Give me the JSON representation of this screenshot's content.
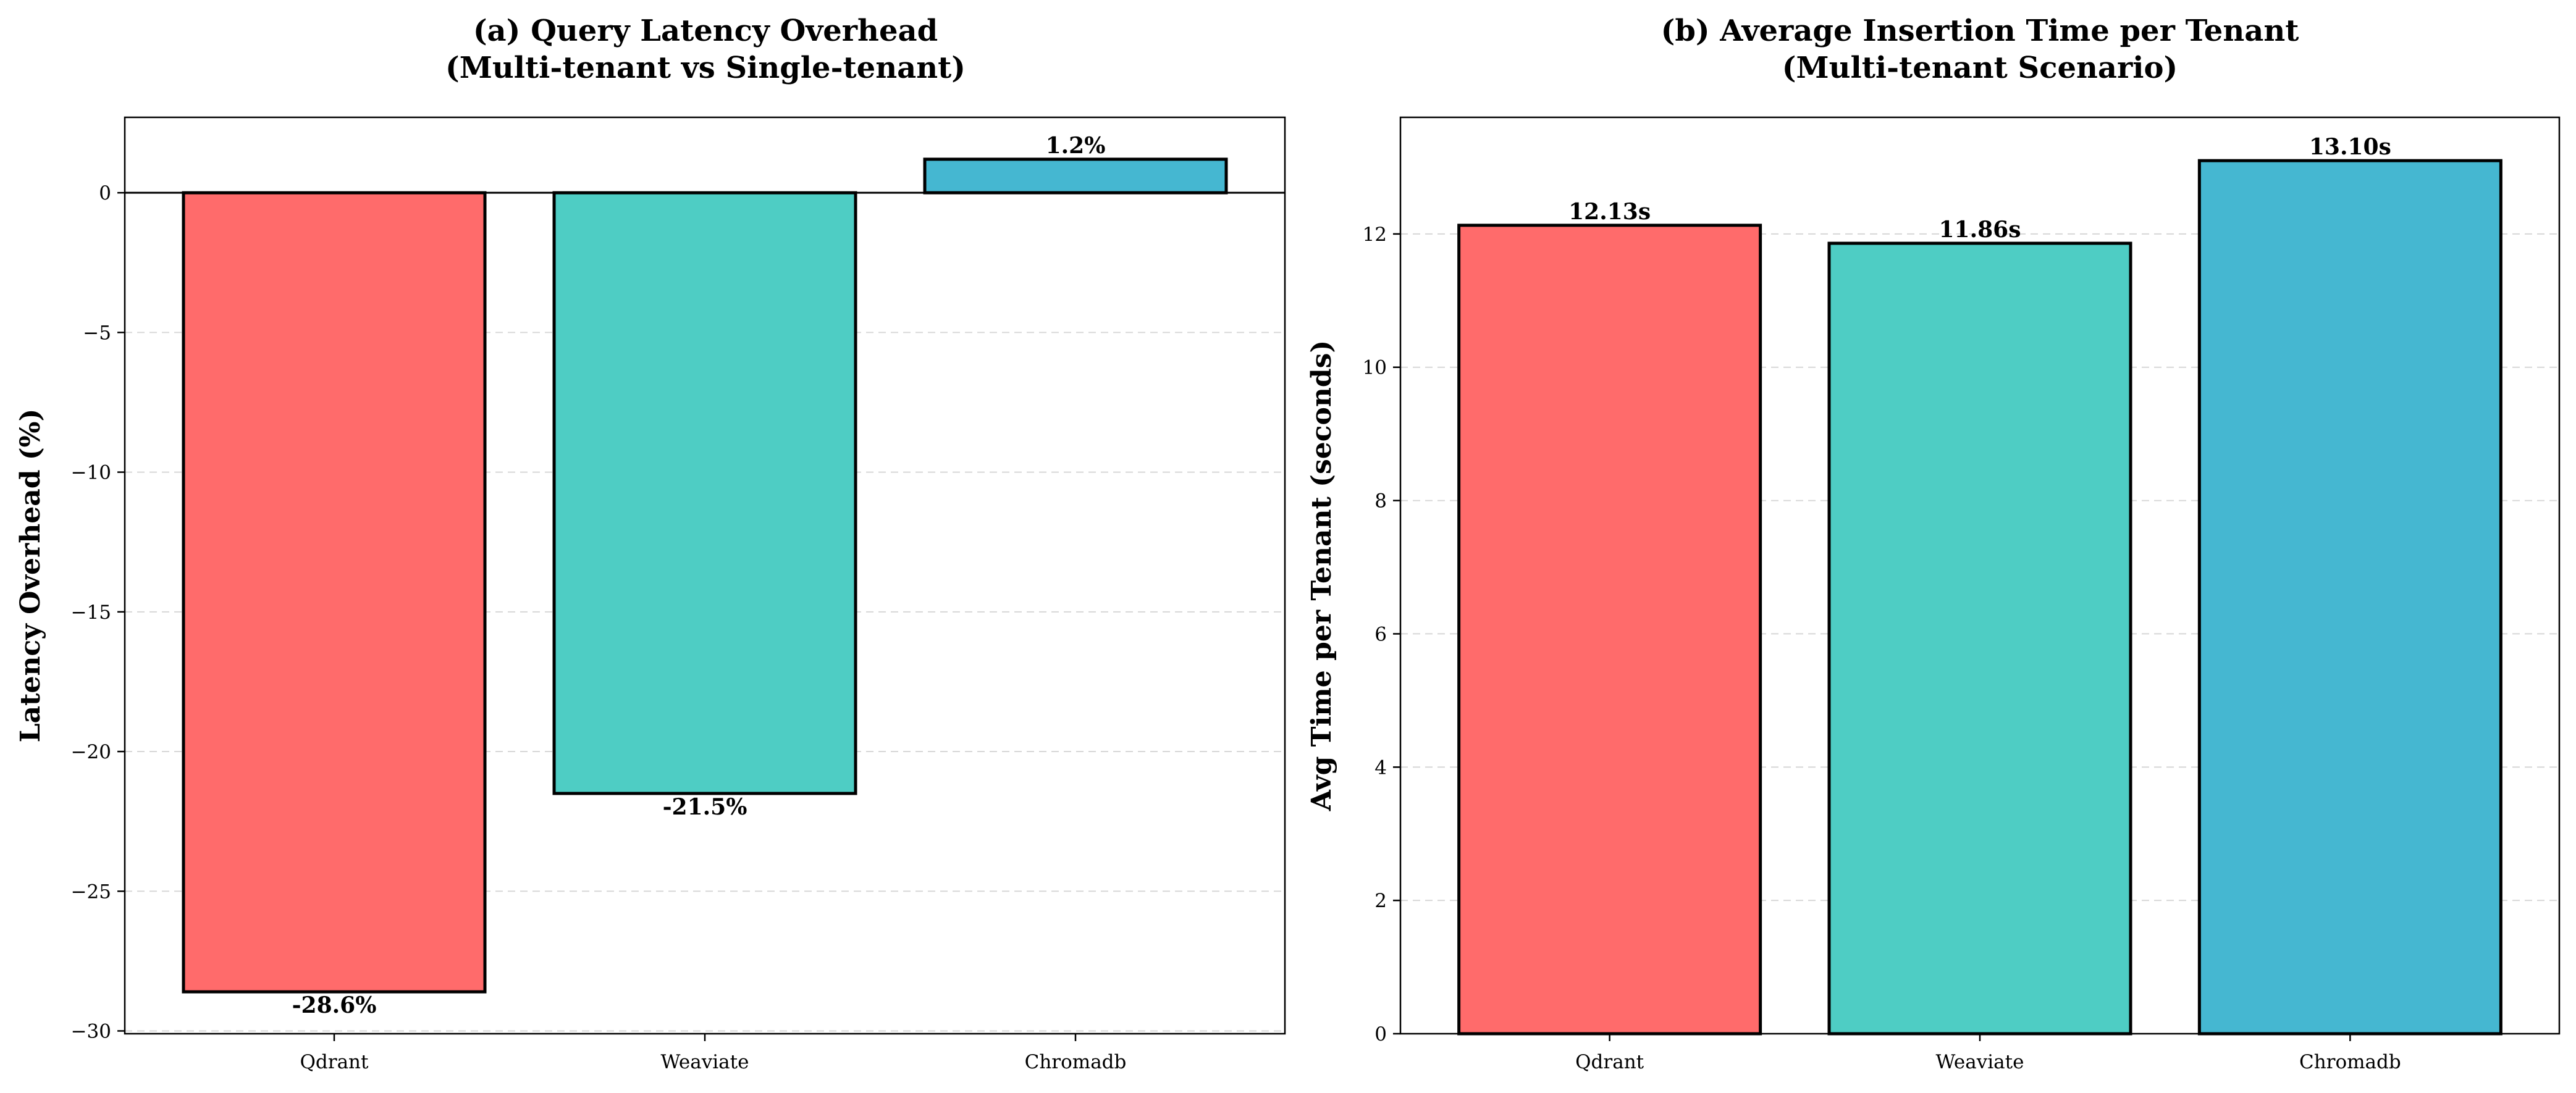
{
  "chart_data": [
    {
      "type": "bar",
      "title_lines": [
        "(a) Query Latency Overhead",
        "(Multi-tenant vs Single-tenant)"
      ],
      "xlabel": "",
      "ylabel": "Latency Overhead (%)",
      "categories": [
        "Qdrant",
        "Weaviate",
        "Chromadb"
      ],
      "values": [
        -28.6,
        -21.5,
        1.2
      ],
      "data_labels": [
        "-28.6%",
        "-21.5%",
        "1.2%"
      ],
      "colors": [
        "#FF6B6B",
        "#4ECDC4",
        "#45B7D1"
      ],
      "ylim": [
        -30.1,
        2.7
      ],
      "yticks": [
        0,
        -5,
        -10,
        -15,
        -20,
        -25,
        -30
      ],
      "ytick_labels": [
        "0",
        "−5",
        "−10",
        "−15",
        "−20",
        "−25",
        "−30"
      ],
      "grid": "y-dashed",
      "zero_line": true
    },
    {
      "type": "bar",
      "title_lines": [
        "(b) Average Insertion Time per Tenant",
        "(Multi-tenant Scenario)"
      ],
      "xlabel": "",
      "ylabel": "Avg Time per Tenant (seconds)",
      "categories": [
        "Qdrant",
        "Weaviate",
        "Chromadb"
      ],
      "values": [
        12.13,
        11.86,
        13.1
      ],
      "data_labels": [
        "12.13s",
        "11.86s",
        "13.10s"
      ],
      "colors": [
        "#FF6B6B",
        "#4ECDC4",
        "#45B7D1"
      ],
      "ylim": [
        0,
        13.75
      ],
      "yticks": [
        0,
        2,
        4,
        6,
        8,
        10,
        12
      ],
      "ytick_labels": [
        "0",
        "2",
        "4",
        "6",
        "8",
        "10",
        "12"
      ],
      "grid": "y-dashed",
      "zero_line": false
    }
  ]
}
